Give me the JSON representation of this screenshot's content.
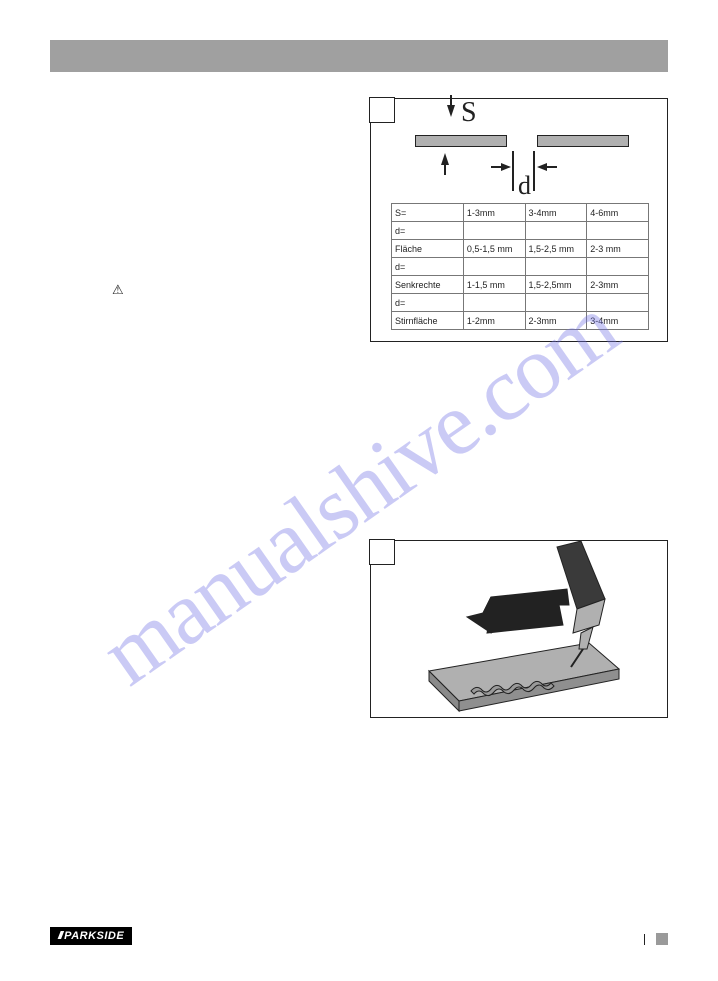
{
  "watermark": "manualshive.com",
  "warn_symbol": "⚠",
  "figI": {
    "s_label": "S",
    "d_label": "d",
    "table": {
      "rows": [
        [
          "S=",
          "1-3mm",
          "3-4mm",
          "4-6mm"
        ],
        [
          "d=",
          "",
          "",
          ""
        ],
        [
          "Fläche",
          "0,5-1,5 mm",
          "1,5-2,5 mm",
          "2-3 mm"
        ],
        [
          "d=",
          "",
          "",
          ""
        ],
        [
          "Senkrechte",
          "1-1,5 mm",
          "1,5-2,5mm",
          "2-3mm"
        ],
        [
          "d=",
          "",
          "",
          ""
        ],
        [
          "Stirnfläche",
          "1-2mm",
          "2-3mm",
          "3-4mm"
        ]
      ]
    },
    "plate_color": "#b0b0b0",
    "border_color": "#222222"
  },
  "figJ": {
    "plate_fill": "#b0b0b0",
    "plate_stroke": "#222222",
    "handle_fill": "#3a3a3a",
    "tip_fill": "#b0b0b0",
    "weld_fill": "#9a9a9a",
    "arrow_fill": "#222222"
  },
  "footer": {
    "bars": "///",
    "brand": "PARKSIDE"
  }
}
